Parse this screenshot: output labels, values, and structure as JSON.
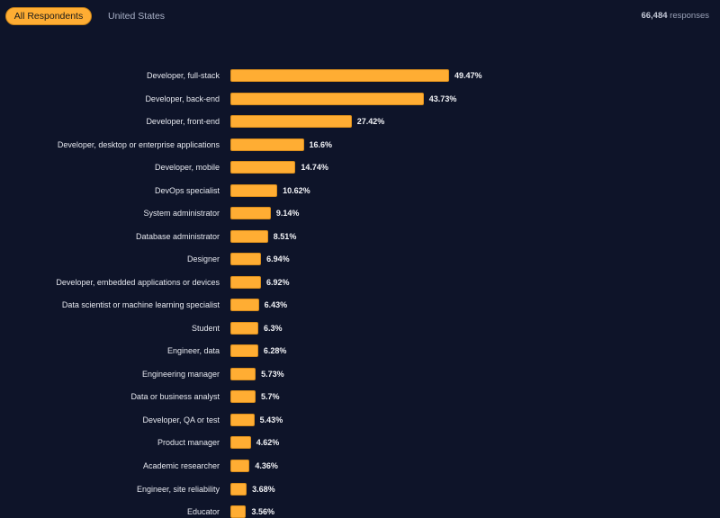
{
  "tabs": [
    {
      "label": "All Respondents",
      "active": true
    },
    {
      "label": "United States",
      "active": false
    }
  ],
  "responses": {
    "count": "66,484",
    "label": "responses"
  },
  "colors": {
    "background": "#0e1429",
    "bar": "#ffad33"
  },
  "chart_data": {
    "type": "bar",
    "orientation": "horizontal",
    "categories": [
      "Developer, full-stack",
      "Developer, back-end",
      "Developer, front-end",
      "Developer, desktop or enterprise applications",
      "Developer, mobile",
      "DevOps specialist",
      "System administrator",
      "Database administrator",
      "Designer",
      "Developer, embedded applications or devices",
      "Data scientist or machine learning specialist",
      "Student",
      "Engineer, data",
      "Engineering manager",
      "Data or business analyst",
      "Developer, QA or test",
      "Product manager",
      "Academic researcher",
      "Engineer, site reliability",
      "Educator"
    ],
    "values": [
      49.47,
      43.73,
      27.42,
      16.6,
      14.74,
      10.62,
      9.14,
      8.51,
      6.94,
      6.92,
      6.43,
      6.3,
      6.28,
      5.73,
      5.7,
      5.43,
      4.62,
      4.36,
      3.68,
      3.56
    ],
    "value_labels": [
      "49.47%",
      "43.73%",
      "27.42%",
      "16.6%",
      "14.74%",
      "10.62%",
      "9.14%",
      "8.51%",
      "6.94%",
      "6.92%",
      "6.43%",
      "6.3%",
      "6.28%",
      "5.73%",
      "5.7%",
      "5.43%",
      "4.62%",
      "4.36%",
      "3.68%",
      "3.56%"
    ],
    "unit": "%",
    "grid": false
  }
}
